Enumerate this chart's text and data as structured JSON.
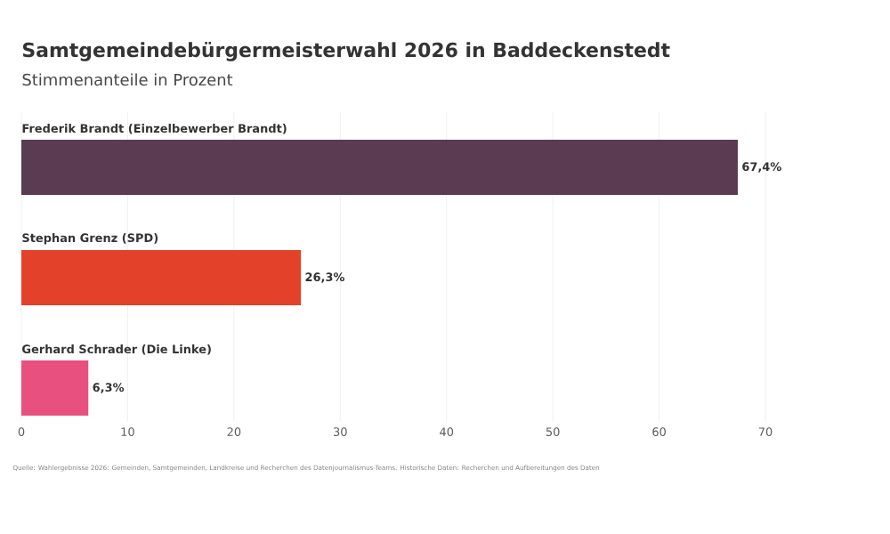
{
  "chart_data": {
    "type": "bar",
    "orientation": "horizontal",
    "title": "Samtgemeindebürgermeisterwahl 2026 in Baddeckenstedt",
    "subtitle": "Stimmenanteile in Prozent",
    "categories": [
      "Frederik Brandt (Einzelbewerber Brandt)",
      "Stephan Grenz (SPD)",
      "Gerhard Schrader (Die Linke)"
    ],
    "values": [
      67.4,
      26.3,
      6.3
    ],
    "colors": [
      "#5a3b52",
      "#e3412a",
      "#e8507f"
    ],
    "value_labels": [
      "67,4%",
      "26,3%",
      "6,3%"
    ],
    "xlim": [
      0,
      70
    ],
    "xticks": [
      0,
      10,
      20,
      30,
      40,
      50,
      60,
      70
    ],
    "grid": "x",
    "annotations": [
      "Quelle: Wahlergebnisse 2026: Gemeinden, Samtgemeinden, Landkreise und Recherchen des Datenjournalismus-Teams. Historische Daten: Recherchen und Aufbereitungen des Daten"
    ]
  }
}
